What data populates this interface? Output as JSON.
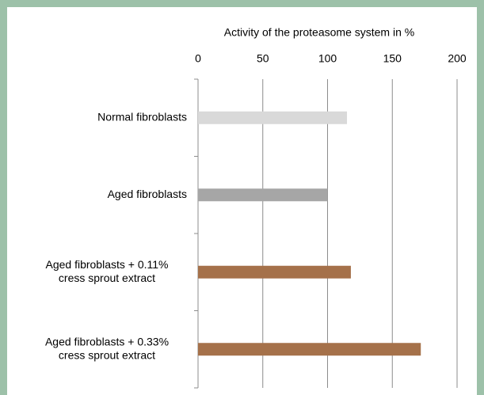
{
  "chart_data": {
    "type": "bar",
    "orientation": "horizontal",
    "title": "Activity of the proteasome system in %",
    "categories": [
      [
        "Normal fibroblasts"
      ],
      [
        "Aged fibroblasts"
      ],
      [
        "Aged fibroblasts + 0.11%",
        "cress sprout extract"
      ],
      [
        "Aged fibroblasts + 0.33%",
        "cress sprout extract"
      ]
    ],
    "values": [
      115,
      100,
      118,
      172
    ],
    "colors": [
      "#d9d9d9",
      "#a6a6a6",
      "#a5714a",
      "#a5714a"
    ],
    "xlim": [
      0,
      200
    ],
    "xticks": [
      0,
      50,
      100,
      150,
      200
    ],
    "grid": true
  }
}
